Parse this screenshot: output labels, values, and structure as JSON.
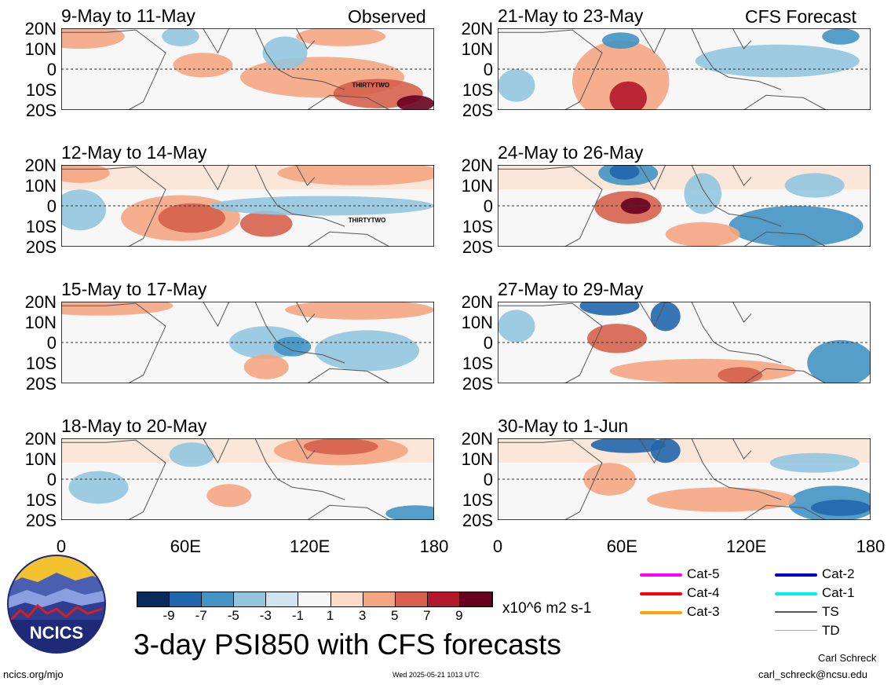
{
  "observed_tag": "Observed",
  "forecast_tag": "CFS Forecast",
  "lat_labels": [
    "20N",
    "10N",
    "0",
    "10S",
    "20S"
  ],
  "lon_labels": [
    "0",
    "60E",
    "120E",
    "180"
  ],
  "panels": [
    {
      "title": "9-May to 11-May",
      "storm_label": "THIRTYTWO"
    },
    {
      "title": "12-May to 14-May",
      "storm_label": "THIRTYTWO"
    },
    {
      "title": "15-May to 17-May",
      "storm_label": ""
    },
    {
      "title": "18-May to 20-May",
      "storm_label": ""
    },
    {
      "title": "21-May to 23-May",
      "storm_label": ""
    },
    {
      "title": "24-May to 26-May",
      "storm_label": ""
    },
    {
      "title": "27-May to 29-May",
      "storm_label": ""
    },
    {
      "title": "30-May to 1-Jun",
      "storm_label": ""
    }
  ],
  "colorbar": {
    "ticks": [
      "-9",
      "-7",
      "-5",
      "-3",
      "-1",
      "1",
      "3",
      "5",
      "7",
      "9"
    ],
    "units": "x10^6 m2 s-1",
    "colors": [
      "#0b2a5c",
      "#2166ac",
      "#4393c3",
      "#92c5de",
      "#d1e5f0",
      "#f7f7f7",
      "#fddbc7",
      "#f4a582",
      "#d6604d",
      "#b2182b",
      "#67001f"
    ]
  },
  "legend": [
    {
      "label": "Cat-5",
      "color": "#ff00ff"
    },
    {
      "label": "Cat-4",
      "color": "#ff0000"
    },
    {
      "label": "Cat-3",
      "color": "#ffa500"
    },
    {
      "label": "Cat-2",
      "color": "#0000cc"
    },
    {
      "label": "Cat-1",
      "color": "#00eeee"
    },
    {
      "label": "TS",
      "color": "#555555"
    },
    {
      "label": "TD",
      "color": "#aaaaaa"
    }
  ],
  "main_title": "3-day PSI850 with CFS forecasts",
  "logo_text": "NCICS",
  "footer_left": "ncics.org/mjo",
  "footer_center": "Wed 2025-05-21 1013 UTC",
  "footer_right_name": "Carl Schreck",
  "footer_right_email": "carl_schreck@ncsu.edu"
}
